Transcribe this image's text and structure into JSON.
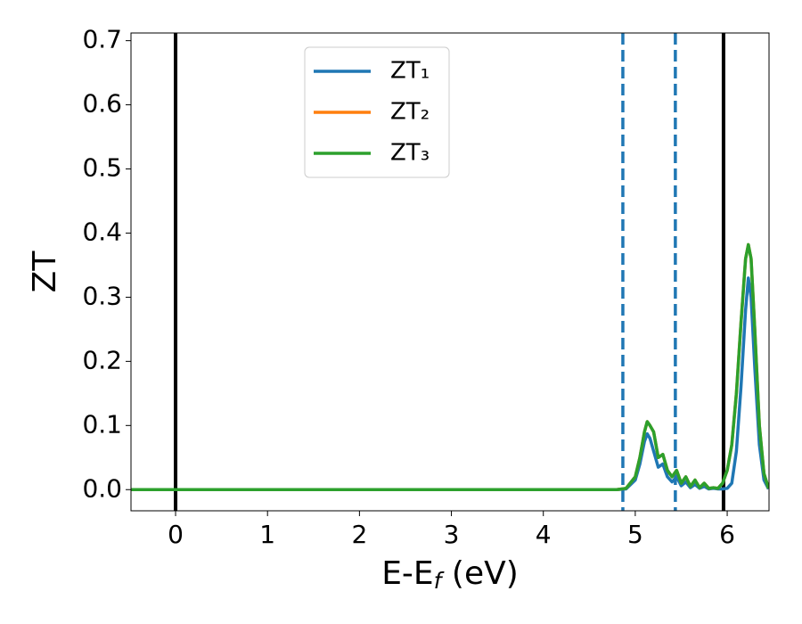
{
  "chart_data": {
    "type": "line",
    "ylabel": "ZT",
    "xlabel": [
      "E-E",
      "f",
      " (eV)"
    ],
    "x": [
      -0.48,
      4.8,
      4.9,
      5.0,
      5.05,
      5.1,
      5.13,
      5.16,
      5.2,
      5.25,
      5.3,
      5.35,
      5.4,
      5.45,
      5.5,
      5.55,
      5.6,
      5.65,
      5.7,
      5.75,
      5.8,
      5.85,
      5.9,
      5.95,
      6.0,
      6.05,
      6.1,
      6.15,
      6.2,
      6.23,
      6.26,
      6.3,
      6.35,
      6.4,
      6.45
    ],
    "series": [
      {
        "name": "ZT₁",
        "color": "#1f77b4",
        "values": [
          0,
          0,
          0.001,
          0.015,
          0.04,
          0.075,
          0.087,
          0.08,
          0.06,
          0.035,
          0.04,
          0.02,
          0.012,
          0.02,
          0.006,
          0.012,
          0.003,
          0.008,
          0.002,
          0.005,
          0.001,
          0.002,
          0.001,
          0.001,
          0.002,
          0.01,
          0.06,
          0.16,
          0.28,
          0.33,
          0.3,
          0.19,
          0.07,
          0.015,
          0.001
        ]
      },
      {
        "name": "ZT₂",
        "color": "#ff7f0e",
        "values": [
          0,
          0,
          0.002,
          0.02,
          0.05,
          0.09,
          0.106,
          0.1,
          0.09,
          0.05,
          0.055,
          0.03,
          0.02,
          0.03,
          0.01,
          0.02,
          0.005,
          0.015,
          0.003,
          0.01,
          0.002,
          0.003,
          0.002,
          0.01,
          0.03,
          0.07,
          0.15,
          0.26,
          0.36,
          0.382,
          0.36,
          0.25,
          0.1,
          0.025,
          0.002
        ]
      },
      {
        "name": "ZT₃",
        "color": "#2ca02c",
        "values": [
          0,
          0,
          0.002,
          0.02,
          0.05,
          0.09,
          0.106,
          0.1,
          0.09,
          0.05,
          0.055,
          0.03,
          0.02,
          0.03,
          0.01,
          0.02,
          0.005,
          0.015,
          0.003,
          0.01,
          0.002,
          0.003,
          0.002,
          0.01,
          0.03,
          0.07,
          0.15,
          0.26,
          0.36,
          0.382,
          0.36,
          0.25,
          0.1,
          0.025,
          0.002
        ]
      }
    ],
    "vlines": [
      {
        "x": 0,
        "color": "#000000",
        "dashed": false
      },
      {
        "x": 5.96,
        "color": "#000000",
        "dashed": false
      },
      {
        "x": 4.865,
        "color": "#1f77b4",
        "dashed": true
      },
      {
        "x": 5.436,
        "color": "#1f77b4",
        "dashed": true
      }
    ],
    "xlim": [
      -0.485,
      6.455
    ],
    "ylim": [
      -0.033,
      0.712
    ],
    "xticks": [
      0,
      1,
      2,
      3,
      4,
      5,
      6
    ],
    "yticks": [
      {
        "value": 0,
        "label": "0.0"
      },
      0.1,
      0.2,
      0.3,
      0.4,
      0.5,
      0.6,
      0.7
    ],
    "legend": "upper center",
    "grid": false
  }
}
